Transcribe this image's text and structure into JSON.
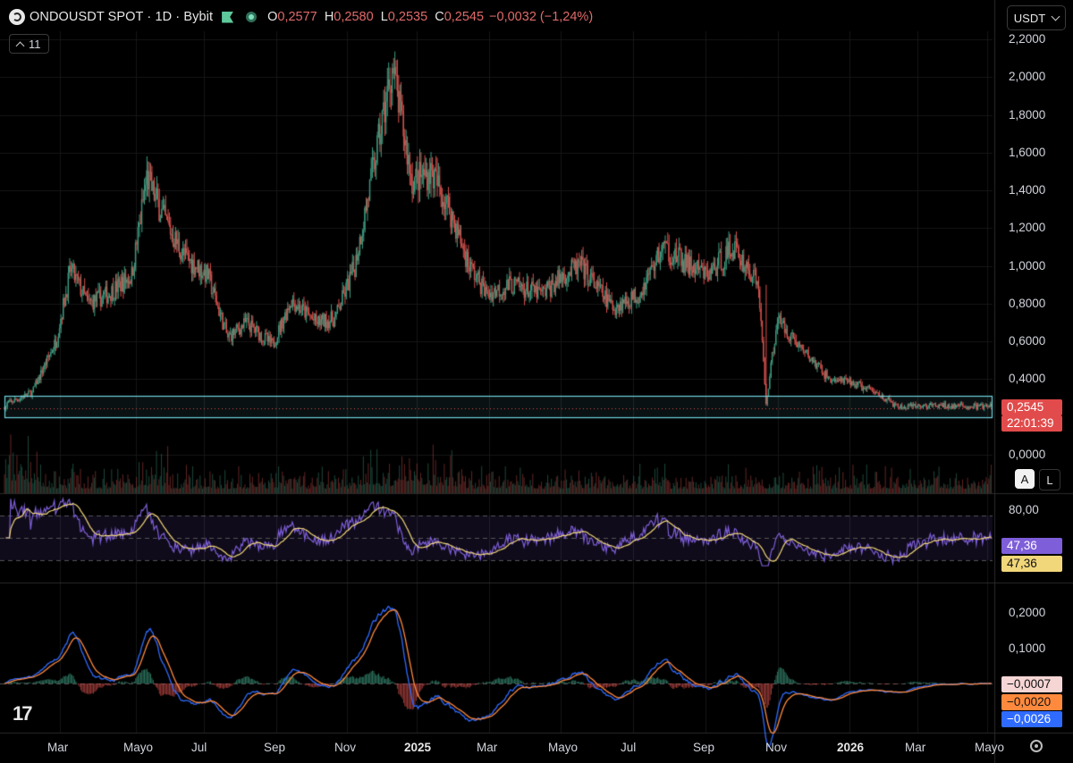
{
  "header": {
    "symbol": "ONDOUSDT SPOT · 1D · Bybit",
    "o_label": "O",
    "open": "0,2577",
    "h_label": "H",
    "high": "0,2580",
    "l_label": "L",
    "low": "0,2535",
    "c_label": "C",
    "close": "0,2545",
    "change": "−0,0032 (−1,24%)",
    "indicators_count": "11"
  },
  "currency_button": "USDT",
  "price_axis": [
    "2,2000",
    "2,0000",
    "1,8000",
    "1,6000",
    "1,4000",
    "1,2000",
    "1,0000",
    "0,8000",
    "0,6000",
    "0,4000",
    "0,0000"
  ],
  "last_price": {
    "value": "0,2545",
    "countdown": "22:01:39",
    "color": "#e24b4b"
  },
  "rsi_axis": {
    "upper": "80,00",
    "value1": "47,36",
    "value2": "47,36"
  },
  "macd_axis": [
    "0,2000",
    "0,1000"
  ],
  "macd_values": {
    "histogram": "−0,0007",
    "signal": "−0,0020",
    "macd": "−0,0026"
  },
  "scale_buttons": {
    "auto": "A",
    "log": "L"
  },
  "time_axis": [
    {
      "label": "Mar",
      "bold": false
    },
    {
      "label": "Mayo",
      "bold": false
    },
    {
      "label": "Jul",
      "bold": false
    },
    {
      "label": "Sep",
      "bold": false
    },
    {
      "label": "Nov",
      "bold": false
    },
    {
      "label": "2025",
      "bold": true
    },
    {
      "label": "Mar",
      "bold": false
    },
    {
      "label": "Mayo",
      "bold": false
    },
    {
      "label": "Jul",
      "bold": false
    },
    {
      "label": "Sep",
      "bold": false
    },
    {
      "label": "Nov",
      "bold": false
    },
    {
      "label": "2026",
      "bold": true
    },
    {
      "label": "Mar",
      "bold": false
    },
    {
      "label": "Mayo",
      "bold": false
    }
  ],
  "tv_logo": "17",
  "colors": {
    "up": "#3e9f83",
    "down": "#d9534f",
    "rsi": "#7e5ed9",
    "rsi_ma": "#f2d77a",
    "macd": "#2f6bff",
    "signal": "#ff8a3d",
    "box": "#6fd3e0"
  },
  "chart_data": {
    "type": "candlestick",
    "series": [
      {
        "name": "price",
        "points": [
          [
            "2024-02-10",
            0.27
          ],
          [
            "2024-03-01",
            0.33
          ],
          [
            "2024-03-20",
            0.6
          ],
          [
            "2024-04-01",
            0.98
          ],
          [
            "2024-04-15",
            0.8
          ],
          [
            "2024-05-01",
            0.85
          ],
          [
            "2024-05-20",
            0.95
          ],
          [
            "2024-06-01",
            1.47
          ],
          [
            "2024-06-15",
            1.25
          ],
          [
            "2024-07-01",
            1.05
          ],
          [
            "2024-07-20",
            0.95
          ],
          [
            "2024-08-05",
            0.62
          ],
          [
            "2024-08-20",
            0.7
          ],
          [
            "2024-09-10",
            0.58
          ],
          [
            "2024-09-25",
            0.82
          ],
          [
            "2024-10-15",
            0.7
          ],
          [
            "2024-10-30",
            0.72
          ],
          [
            "2024-11-15",
            1.0
          ],
          [
            "2024-12-01",
            1.55
          ],
          [
            "2024-12-15",
            2.05
          ],
          [
            "2024-12-31",
            1.45
          ],
          [
            "2025-01-15",
            1.5
          ],
          [
            "2025-01-30",
            1.3
          ],
          [
            "2025-02-15",
            1.0
          ],
          [
            "2025-03-01",
            0.85
          ],
          [
            "2025-03-20",
            0.9
          ],
          [
            "2025-04-15",
            0.85
          ],
          [
            "2025-05-01",
            0.95
          ],
          [
            "2025-05-15",
            1.0
          ],
          [
            "2025-06-10",
            0.78
          ],
          [
            "2025-07-01",
            0.85
          ],
          [
            "2025-07-20",
            1.1
          ],
          [
            "2025-08-10",
            1.0
          ],
          [
            "2025-08-25",
            0.95
          ],
          [
            "2025-09-15",
            1.1
          ],
          [
            "2025-10-05",
            0.9
          ],
          [
            "2025-10-11",
            0.27
          ],
          [
            "2025-10-20",
            0.72
          ],
          [
            "2025-11-10",
            0.55
          ],
          [
            "2025-12-01",
            0.4
          ],
          [
            "2025-12-20",
            0.38
          ],
          [
            "2026-01-10",
            0.32
          ],
          [
            "2026-01-25",
            0.25
          ],
          [
            "2026-02-20",
            0.26
          ],
          [
            "2026-04-10",
            0.2545
          ]
        ]
      }
    ],
    "ylim": [
      0,
      2.2
    ]
  }
}
